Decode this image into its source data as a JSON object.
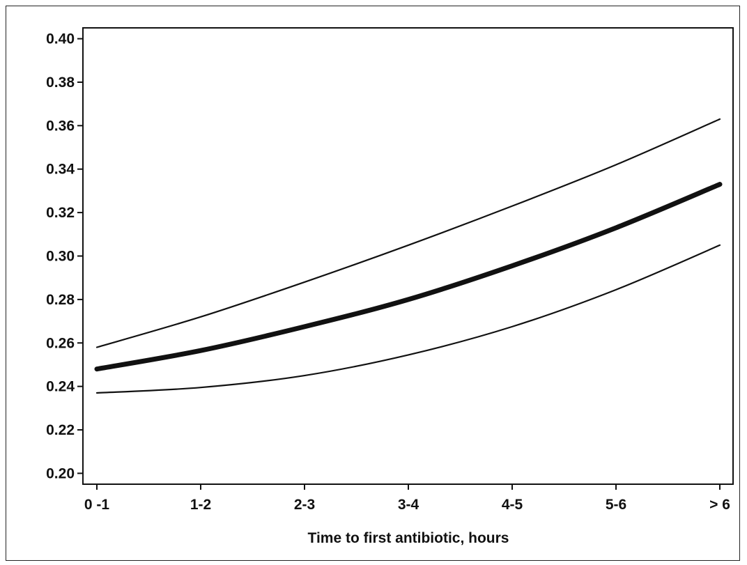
{
  "chart_data": {
    "type": "line",
    "title": "",
    "xlabel": "Time to first antibiotic, hours",
    "ylabel": "",
    "categories": [
      "0 -1",
      "1-2",
      "2-3",
      "3-4",
      "4-5",
      "5-6",
      "> 6"
    ],
    "ylim": [
      0.195,
      0.405
    ],
    "yticks": [
      "0.20",
      "0.22",
      "0.24",
      "0.26",
      "0.28",
      "0.30",
      "0.32",
      "0.34",
      "0.36",
      "0.38",
      "0.40"
    ],
    "grid": false,
    "legend": "none",
    "series": [
      {
        "role": "estimate",
        "values": [
          0.248,
          0.2565,
          0.2675,
          0.28,
          0.2955,
          0.313,
          0.333
        ]
      },
      {
        "role": "upper",
        "values": [
          0.258,
          0.272,
          0.288,
          0.305,
          0.323,
          0.342,
          0.363
        ]
      },
      {
        "role": "lower",
        "values": [
          0.237,
          0.2395,
          0.245,
          0.2545,
          0.2675,
          0.2845,
          0.305
        ]
      }
    ]
  }
}
